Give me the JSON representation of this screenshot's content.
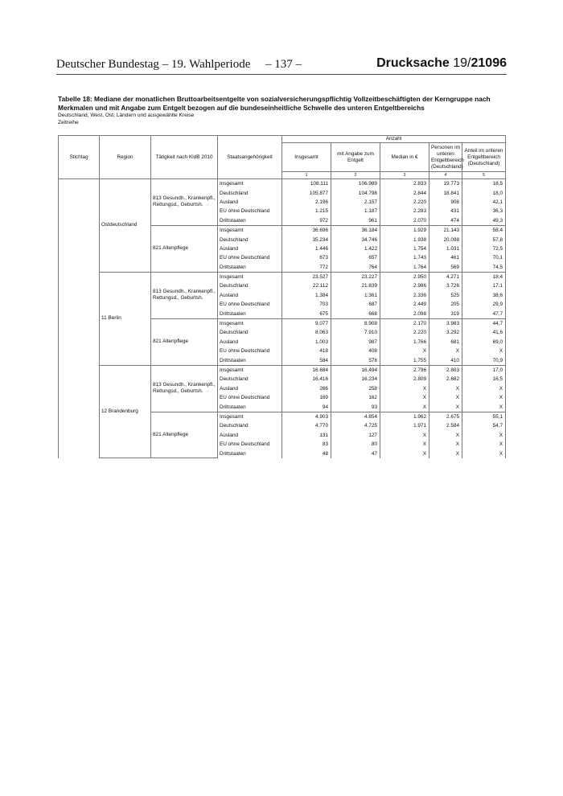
{
  "header": {
    "left": "Deutscher Bundestag – 19. Wahlperiode",
    "page": "– 137 –",
    "doc_label": "Drucksache ",
    "doc_num_a": "19/",
    "doc_num_b": "21096"
  },
  "title": "Tabelle 18: Mediane der monatlichen Bruttoarbeitsentgelte von sozialversicherungspflichtig Vollzeitbeschäftigten der Kerngruppe nach Merkmalen und mit Angabe zum Entgelt bezogen auf die bundeseinheitliche Schwelle des unteren Entgeltbereichs",
  "subtitle1": "Deutschland, West, Ost, Ländern und ausgewählte Kreise",
  "subtitle2": "Zeitreihe",
  "table": {
    "columns": {
      "stichtag": "Stichtag",
      "region": "Region",
      "taetigkeit": "Tätigkeit nach KldB 2010",
      "staat": "Staatsangehörigkeit",
      "anzahl": "Anzahl",
      "c1": "Insgesamt",
      "c2": "mit Angabe zum Entgelt",
      "c3": "Median in €",
      "c4": "Personen im unteren Entgeltbereich (Deutschland)",
      "c5": "Anteil im unteren Entgeltbereich (Deutschland)",
      "idx": [
        "1",
        "2",
        "3",
        "4",
        "5"
      ]
    },
    "regions": [
      {
        "name": "Ostdeutschland",
        "groups": [
          {
            "activity": "813 Gesundh., Krankenpfl., Rettungsd., Geburtsh.",
            "rows": [
              [
                "Insgesamt",
                "108.111",
                "106.989",
                "2.833",
                "19.773",
                "18,5"
              ],
              [
                "Deutschland",
                "105.877",
                "104.798",
                "2.844",
                "18.841",
                "18,0"
              ],
              [
                "Ausland",
                "2.196",
                "2.157",
                "2.220",
                "908",
                "42,1"
              ],
              [
                "EU ohne Deutschland",
                "1.215",
                "1.187",
                "2.283",
                "431",
                "36,3"
              ],
              [
                "Drittstaaten",
                "972",
                "961",
                "2.070",
                "474",
                "49,3"
              ]
            ]
          },
          {
            "activity": "821 Altenpflege",
            "rows": [
              [
                "Insgesamt",
                "36.696",
                "36.184",
                "1.929",
                "21.143",
                "58,4"
              ],
              [
                "Deutschland",
                "35.234",
                "34.746",
                "1.938",
                "20.098",
                "57,8"
              ],
              [
                "Ausland",
                "1.446",
                "1.422",
                "1.754",
                "1.031",
                "72,5"
              ],
              [
                "EU ohne Deutschland",
                "673",
                "657",
                "1.743",
                "461",
                "70,1"
              ],
              [
                "Drittstaaten",
                "772",
                "764",
                "1.764",
                "569",
                "74,5"
              ]
            ]
          }
        ]
      },
      {
        "name": "11 Berlin",
        "groups": [
          {
            "activity": "813 Gesundh., Krankenpfl., Rettungsd., Geburtsh.",
            "rows": [
              [
                "Insgesamt",
                "23.527",
                "23.227",
                "2.950",
                "4.271",
                "18,4"
              ],
              [
                "Deutschland",
                "22.112",
                "21.839",
                "2.986",
                "3.726",
                "17,1"
              ],
              [
                "Ausland",
                "1.384",
                "1.361",
                "2.336",
                "525",
                "38,6"
              ],
              [
                "EU ohne Deutschland",
                "703",
                "687",
                "2.449",
                "205",
                "29,9"
              ],
              [
                "Drittstaaten",
                "675",
                "668",
                "2.098",
                "319",
                "47,7"
              ]
            ]
          },
          {
            "activity": "821 Altenpflege",
            "rows": [
              [
                "Insgesamt",
                "9.077",
                "8.908",
                "2.170",
                "3.983",
                "44,7"
              ],
              [
                "Deutschland",
                "8.063",
                "7.910",
                "2.220",
                "3.292",
                "41,6"
              ],
              [
                "Ausland",
                "1.003",
                "987",
                "1.766",
                "681",
                "69,0"
              ],
              [
                "EU ohne Deutschland",
                "418",
                "408",
                "X",
                "X",
                "X"
              ],
              [
                "Drittstaaten",
                "584",
                "578",
                "1.755",
                "410",
                "70,9"
              ]
            ]
          }
        ]
      },
      {
        "name": "12 Brandenburg",
        "groups": [
          {
            "activity": "813 Gesundh., Krankenpfl., Rettungsd., Geburtsh.",
            "rows": [
              [
                "Insgesamt",
                "16.684",
                "16.494",
                "2.796",
                "2.803",
                "17,0"
              ],
              [
                "Deutschland",
                "16.416",
                "16.234",
                "2.809",
                "2.682",
                "16,5"
              ],
              [
                "Ausland",
                "266",
                "258",
                "X",
                "X",
                "X"
              ],
              [
                "EU ohne Deutschland",
                "169",
                "162",
                "X",
                "X",
                "X"
              ],
              [
                "Drittstaaten",
                "94",
                "93",
                "X",
                "X",
                "X"
              ]
            ]
          },
          {
            "activity": "821 Altenpflege",
            "rows": [
              [
                "Insgesamt",
                "4.903",
                "4.854",
                "1.962",
                "2.675",
                "55,1"
              ],
              [
                "Deutschland",
                "4.770",
                "4.725",
                "1.971",
                "2.584",
                "54,7"
              ],
              [
                "Ausland",
                "131",
                "127",
                "X",
                "X",
                "X"
              ],
              [
                "EU ohne Deutschland",
                "83",
                "80",
                "X",
                "X",
                "X"
              ],
              [
                "Drittstaaten",
                "48",
                "47",
                "X",
                "X",
                "X"
              ]
            ]
          }
        ]
      }
    ]
  }
}
